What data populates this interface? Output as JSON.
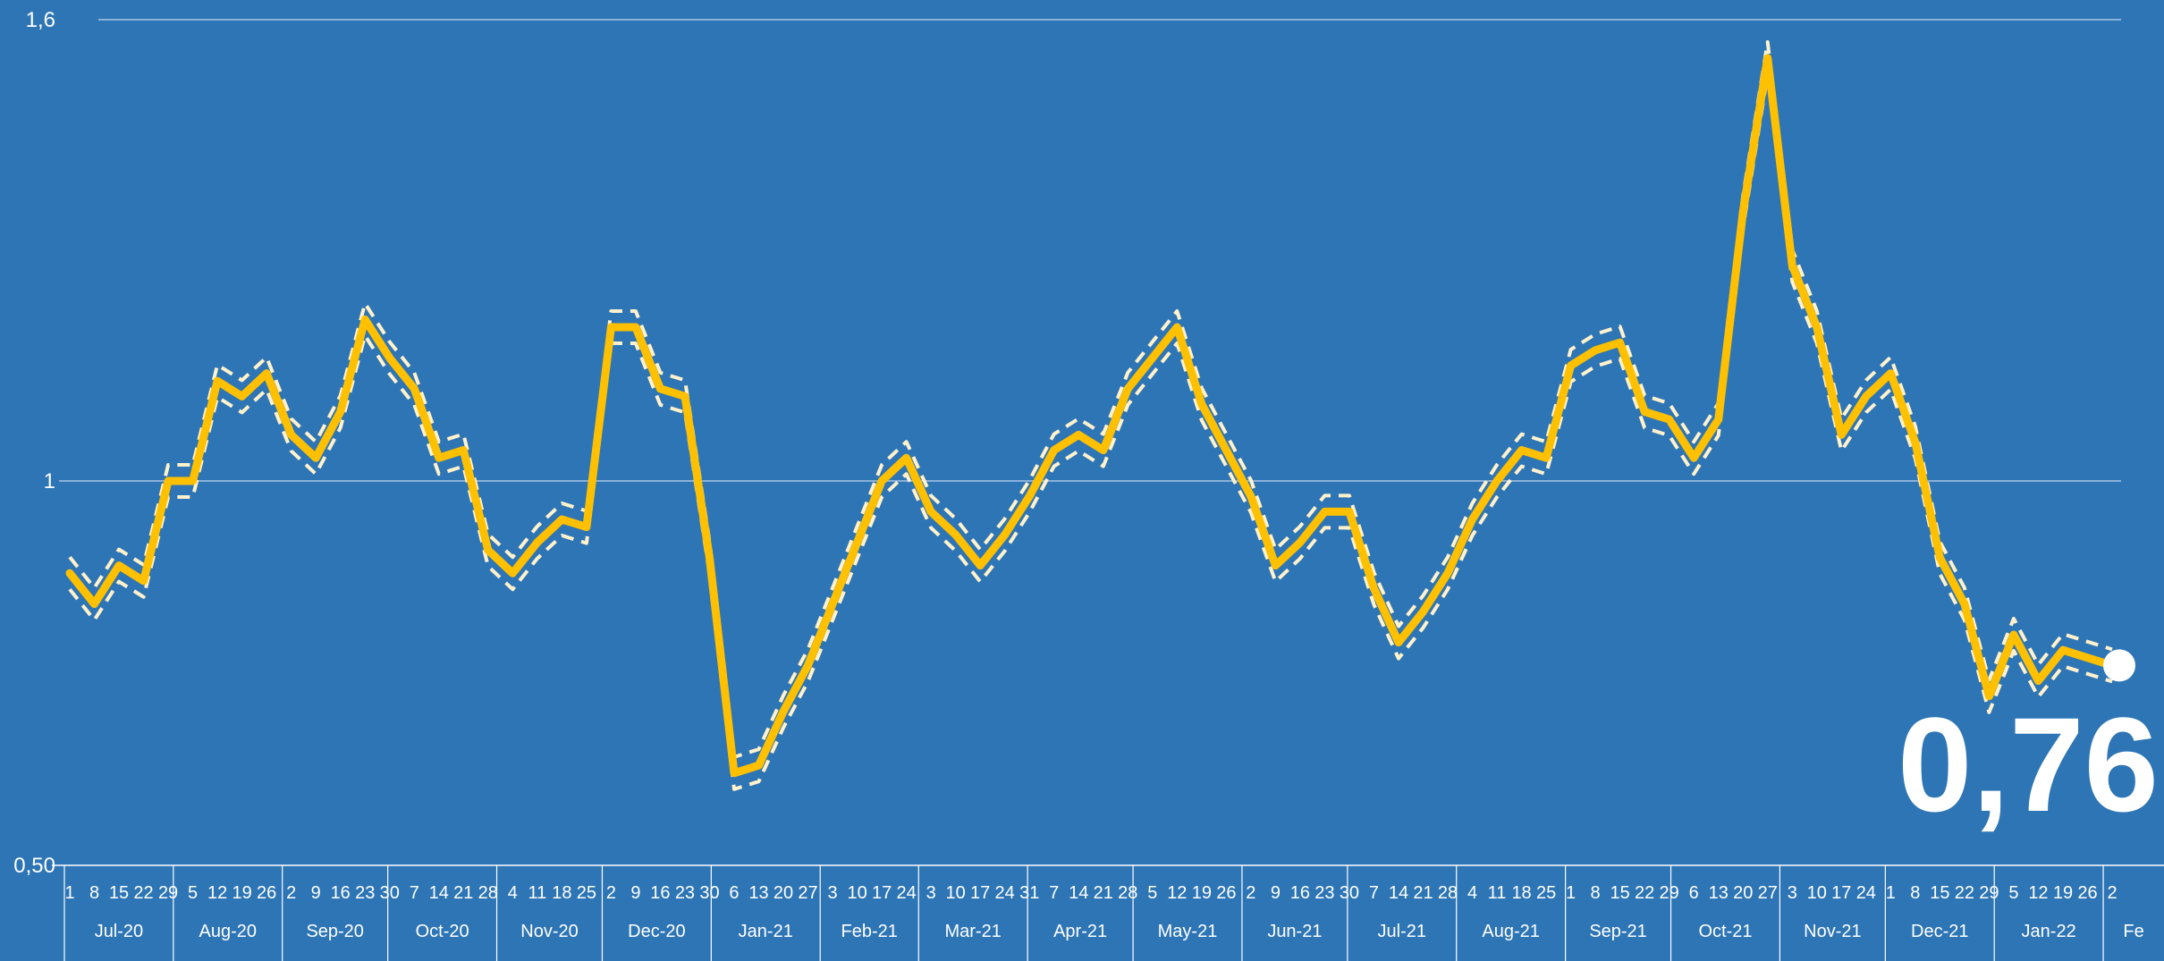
{
  "chart_data": {
    "type": "line",
    "title": "",
    "xlabel": "",
    "ylabel": "",
    "ylim": [
      0.5,
      1.6
    ],
    "y_ticks": [
      {
        "value": 0.5,
        "label": "0,50"
      },
      {
        "value": 1.0,
        "label": "1"
      },
      {
        "value": 1.6,
        "label": "1,6"
      }
    ],
    "grid": true,
    "highlight_value": "0,76",
    "colors": {
      "background": "#2e75b6",
      "line": "#ffc000",
      "band": "#fff2cc",
      "grid": "#a9c4e3"
    },
    "months": [
      {
        "label": "Jul-20",
        "days": [
          "1",
          "8",
          "15",
          "22",
          "29"
        ]
      },
      {
        "label": "Aug-20",
        "days": [
          "5",
          "12",
          "19",
          "26"
        ]
      },
      {
        "label": "Sep-20",
        "days": [
          "2",
          "9",
          "16",
          "23",
          "30"
        ]
      },
      {
        "label": "Oct-20",
        "days": [
          "7",
          "14",
          "21",
          "28"
        ]
      },
      {
        "label": "Nov-20",
        "days": [
          "4",
          "11",
          "18",
          "25"
        ]
      },
      {
        "label": "Dec-20",
        "days": [
          "2",
          "9",
          "16",
          "23",
          "30"
        ]
      },
      {
        "label": "Jan-21",
        "days": [
          "6",
          "13",
          "20",
          "27"
        ]
      },
      {
        "label": "Feb-21",
        "days": [
          "3",
          "10",
          "17",
          "24"
        ]
      },
      {
        "label": "Mar-21",
        "days": [
          "3",
          "10",
          "17",
          "24",
          "31"
        ]
      },
      {
        "label": "Apr-21",
        "days": [
          "7",
          "14",
          "21",
          "28"
        ]
      },
      {
        "label": "May-21",
        "days": [
          "5",
          "12",
          "19",
          "26"
        ]
      },
      {
        "label": "Jun-21",
        "days": [
          "2",
          "9",
          "16",
          "23",
          "30"
        ]
      },
      {
        "label": "Jul-21",
        "days": [
          "7",
          "14",
          "21",
          "28"
        ]
      },
      {
        "label": "Aug-21",
        "days": [
          "4",
          "11",
          "18",
          "25"
        ]
      },
      {
        "label": "Sep-21",
        "days": [
          "1",
          "8",
          "15",
          "22",
          "29"
        ]
      },
      {
        "label": "Oct-21",
        "days": [
          "6",
          "13",
          "20",
          "27"
        ]
      },
      {
        "label": "Nov-21",
        "days": [
          "3",
          "10",
          "17",
          "24"
        ]
      },
      {
        "label": "Dec-21",
        "days": [
          "1",
          "8",
          "15",
          "22",
          "29"
        ]
      },
      {
        "label": "Jan-22",
        "days": [
          "5",
          "12",
          "19",
          "26"
        ]
      },
      {
        "label": "Fe",
        "days": [
          "2"
        ]
      }
    ],
    "series": [
      {
        "role": "estimate",
        "x": [
          "2020-07-01",
          "2020-07-08",
          "2020-07-15",
          "2020-07-22",
          "2020-07-29",
          "2020-08-05",
          "2020-08-12",
          "2020-08-19",
          "2020-08-26",
          "2020-09-02",
          "2020-09-09",
          "2020-09-16",
          "2020-09-23",
          "2020-09-30",
          "2020-10-07",
          "2020-10-14",
          "2020-10-21",
          "2020-10-28",
          "2020-11-04",
          "2020-11-11",
          "2020-11-18",
          "2020-11-25",
          "2020-12-02",
          "2020-12-09",
          "2020-12-16",
          "2020-12-23",
          "2020-12-30",
          "2021-01-06",
          "2021-01-13",
          "2021-01-20",
          "2021-01-27",
          "2021-02-03",
          "2021-02-10",
          "2021-02-17",
          "2021-02-24",
          "2021-03-03",
          "2021-03-10",
          "2021-03-17",
          "2021-03-24",
          "2021-03-31",
          "2021-04-07",
          "2021-04-14",
          "2021-04-21",
          "2021-04-28",
          "2021-05-05",
          "2021-05-12",
          "2021-05-19",
          "2021-05-26",
          "2021-06-02",
          "2021-06-09",
          "2021-06-16",
          "2021-06-23",
          "2021-06-30",
          "2021-07-07",
          "2021-07-14",
          "2021-07-21",
          "2021-07-28",
          "2021-08-04",
          "2021-08-11",
          "2021-08-18",
          "2021-08-25",
          "2021-09-01",
          "2021-09-08",
          "2021-09-15",
          "2021-09-22",
          "2021-09-29",
          "2021-10-06",
          "2021-10-13",
          "2021-10-20",
          "2021-10-27",
          "2021-11-03",
          "2021-11-10",
          "2021-11-17",
          "2021-11-24",
          "2021-12-01",
          "2021-12-08",
          "2021-12-15",
          "2021-12-22",
          "2021-12-29",
          "2022-01-05",
          "2022-01-12",
          "2022-01-19",
          "2022-01-26",
          "2022-02-02"
        ],
        "values": [
          0.88,
          0.84,
          0.89,
          0.87,
          1.0,
          1.0,
          1.13,
          1.11,
          1.14,
          1.06,
          1.03,
          1.09,
          1.21,
          1.16,
          1.12,
          1.03,
          1.04,
          0.91,
          0.88,
          0.92,
          0.95,
          0.94,
          1.2,
          1.2,
          1.12,
          1.11,
          0.9,
          0.62,
          0.63,
          0.7,
          0.76,
          0.84,
          0.92,
          1.0,
          1.03,
          0.96,
          0.93,
          0.89,
          0.93,
          0.98,
          1.04,
          1.06,
          1.04,
          1.12,
          1.16,
          1.2,
          1.1,
          1.04,
          0.98,
          0.89,
          0.92,
          0.96,
          0.96,
          0.86,
          0.79,
          0.83,
          0.88,
          0.95,
          1.0,
          1.04,
          1.03,
          1.15,
          1.17,
          1.18,
          1.09,
          1.08,
          1.03,
          1.08,
          1.35,
          1.55,
          1.28,
          1.2,
          1.06,
          1.11,
          1.14,
          1.05,
          0.9,
          0.84,
          0.72,
          0.8,
          0.74,
          0.78,
          0.77,
          0.76
        ]
      }
    ]
  }
}
